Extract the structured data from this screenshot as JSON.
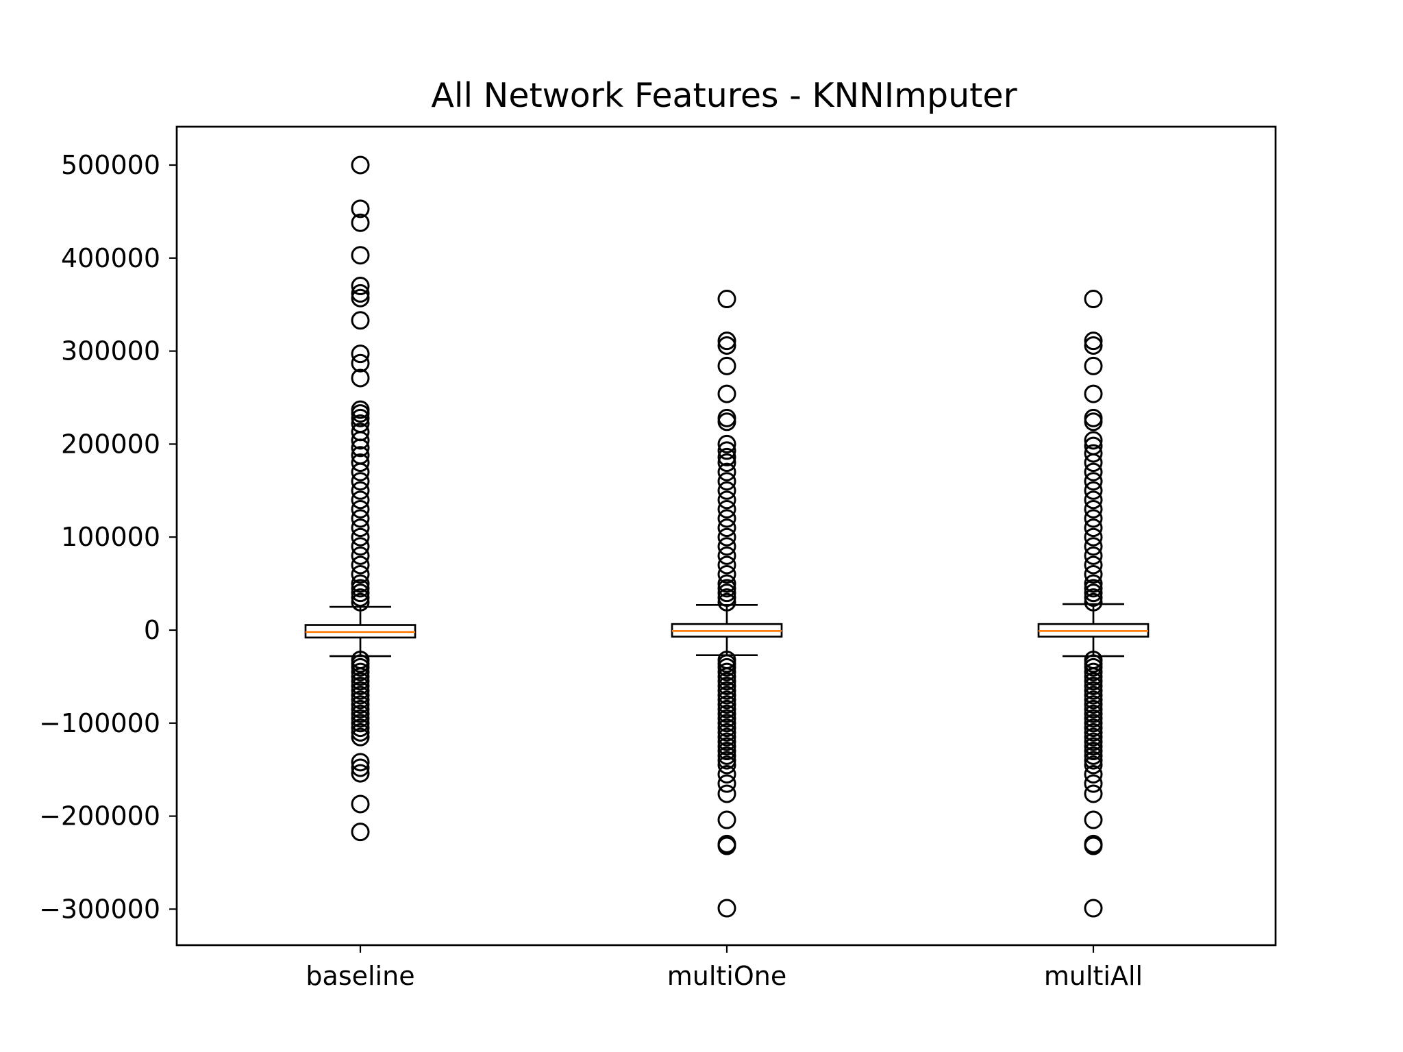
{
  "chart_data": {
    "type": "boxplot",
    "title": "All Network Features - KNNImputer",
    "xlabel": "",
    "ylabel": "",
    "categories": [
      "baseline",
      "multiOne",
      "multiAll"
    ],
    "ylim": [
      -340000,
      540000
    ],
    "yticks": [
      500000,
      400000,
      300000,
      200000,
      100000,
      0,
      -100000,
      -200000,
      -300000
    ],
    "ytick_labels": [
      "500000",
      "400000",
      "300000",
      "200000",
      "100000",
      "0",
      "−100000",
      "−200000",
      "−300000"
    ],
    "grid": false,
    "legend": "none",
    "colors": {
      "median": "#ff7f0e",
      "box": "#000000",
      "flier": "#000000"
    },
    "boxes": [
      {
        "category": "baseline",
        "whisker_low": -28000,
        "q1": -8000,
        "median": -2000,
        "q3": 5500,
        "whisker_high": 25000,
        "fliers": [
          500000,
          453000,
          438000,
          403000,
          370000,
          362000,
          357000,
          333000,
          297000,
          287000,
          271000,
          237000,
          233000,
          228000,
          222000,
          213000,
          204000,
          196000,
          188000,
          180000,
          170000,
          160000,
          150000,
          140000,
          130000,
          120000,
          110000,
          100000,
          90000,
          80000,
          70000,
          60000,
          50000,
          45000,
          40000,
          35000,
          30000,
          -32000,
          -36000,
          -40000,
          -45000,
          -50000,
          -55000,
          -60000,
          -65000,
          -70000,
          -75000,
          -80000,
          -85000,
          -90000,
          -95000,
          -100000,
          -105000,
          -110000,
          -115000,
          -142000,
          -148000,
          -154000,
          -187000,
          -217000
        ]
      },
      {
        "category": "multiOne",
        "whisker_low": -27000,
        "q1": -7000,
        "median": -1000,
        "q3": 6500,
        "whisker_high": 27000,
        "fliers": [
          356000,
          311000,
          306000,
          284000,
          254000,
          228000,
          224000,
          200000,
          193000,
          186000,
          180000,
          170000,
          160000,
          150000,
          140000,
          130000,
          120000,
          110000,
          100000,
          90000,
          80000,
          70000,
          60000,
          50000,
          45000,
          40000,
          35000,
          30000,
          -32000,
          -36000,
          -40000,
          -45000,
          -50000,
          -55000,
          -60000,
          -65000,
          -70000,
          -75000,
          -80000,
          -85000,
          -90000,
          -95000,
          -100000,
          -105000,
          -110000,
          -115000,
          -120000,
          -125000,
          -130000,
          -135000,
          -140000,
          -145000,
          -155000,
          -165000,
          -176000,
          -204000,
          -230000,
          -232000,
          -299000
        ]
      },
      {
        "category": "multiAll",
        "whisker_low": -28000,
        "q1": -7000,
        "median": -1000,
        "q3": 6500,
        "whisker_high": 28000,
        "fliers": [
          356000,
          311000,
          306000,
          284000,
          254000,
          228000,
          224000,
          204000,
          198000,
          190000,
          180000,
          170000,
          160000,
          150000,
          140000,
          130000,
          120000,
          110000,
          100000,
          90000,
          80000,
          70000,
          60000,
          50000,
          45000,
          40000,
          35000,
          30000,
          -32000,
          -36000,
          -40000,
          -45000,
          -50000,
          -55000,
          -60000,
          -65000,
          -70000,
          -75000,
          -80000,
          -85000,
          -90000,
          -95000,
          -100000,
          -105000,
          -110000,
          -115000,
          -120000,
          -125000,
          -130000,
          -135000,
          -140000,
          -145000,
          -155000,
          -165000,
          -176000,
          -204000,
          -230000,
          -232000,
          -299000
        ]
      }
    ]
  }
}
